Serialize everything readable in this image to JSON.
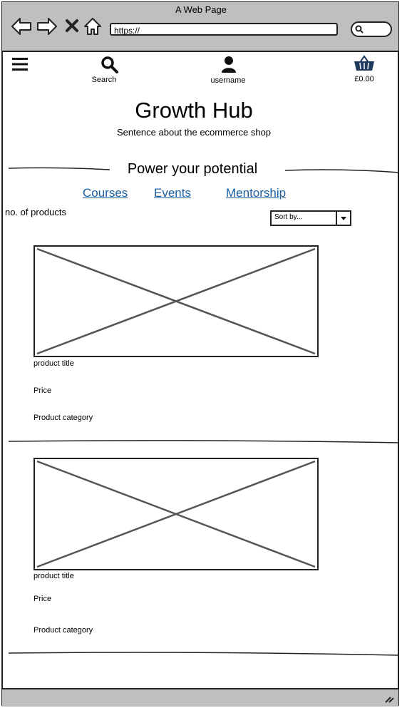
{
  "browser": {
    "window_title": "A Web Page",
    "url": "https://"
  },
  "header": {
    "menu_icon": "hamburger-menu-icon",
    "search_label": "Search",
    "user_label": "username",
    "cart_amount": "£0.00"
  },
  "hero": {
    "title": "Growth Hub",
    "subtitle": "Sentence about the ecommerce shop",
    "section_heading": "Power your potential"
  },
  "nav": {
    "links": [
      "Courses",
      "Events",
      "Mentorship"
    ],
    "link_color": "#1a5fa0"
  },
  "toolbar": {
    "product_count": "no. of products",
    "sort_label": "Sort by..."
  },
  "products": [
    {
      "title": "product title",
      "price": "Price",
      "category": "Product category"
    },
    {
      "title": "product title",
      "price": "Price",
      "category": "Product category"
    }
  ]
}
